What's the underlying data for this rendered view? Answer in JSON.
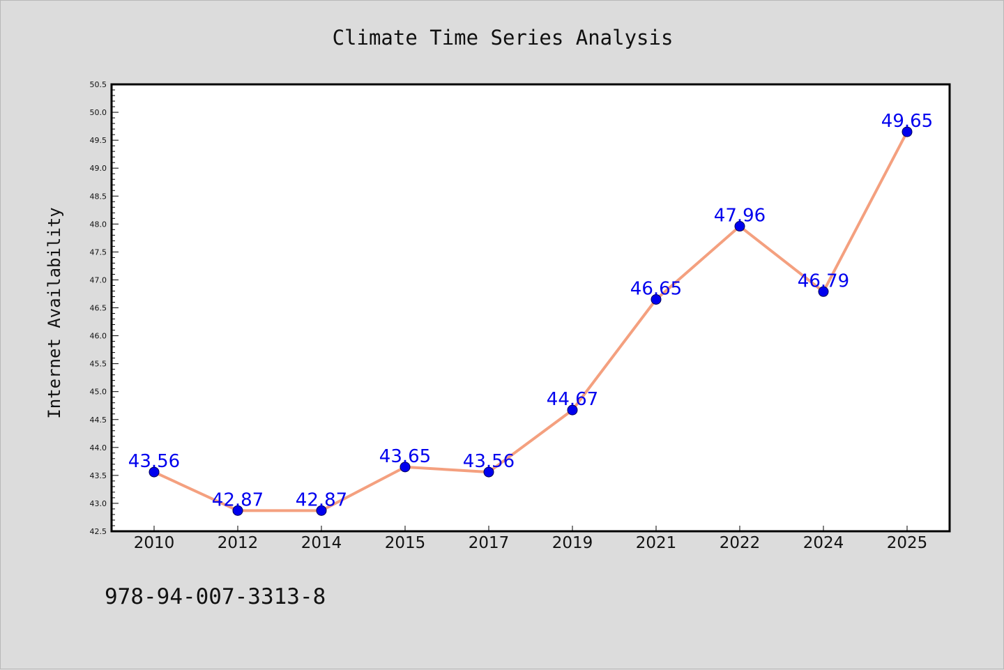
{
  "chart_data": {
    "type": "line",
    "title": "Climate Time Series Analysis",
    "xlabel": "",
    "ylabel": "Internet Availability",
    "categories": [
      "2010",
      "2012",
      "2014",
      "2015",
      "2017",
      "2019",
      "2021",
      "2022",
      "2024",
      "2025"
    ],
    "series": [
      {
        "values": [
          43.56,
          42.87,
          42.87,
          43.65,
          43.56,
          44.67,
          46.65,
          47.96,
          46.79,
          49.65
        ]
      }
    ],
    "ylim": [
      42.5,
      50.5
    ],
    "yticks": [
      "42.5",
      "43.0",
      "43.5",
      "44.0",
      "44.5",
      "45.0",
      "45.5",
      "46.0",
      "46.5",
      "47.0",
      "47.5",
      "48.0",
      "48.5",
      "49.0",
      "49.5",
      "50.0",
      "50.5"
    ],
    "data_labels": [
      "43.56",
      "42.87",
      "42.87",
      "43.65",
      "43.56",
      "44.67",
      "46.65",
      "47.96",
      "46.79",
      "49.65"
    ],
    "grid": false,
    "legend": "none",
    "colors": {
      "line": "#f4a07f",
      "marker": "#0000ee",
      "label": "#0000ee",
      "background": "#dcdcdc",
      "plot_area": "#ffffff"
    }
  },
  "footer": {
    "isbn": "978-94-007-3313-8"
  }
}
